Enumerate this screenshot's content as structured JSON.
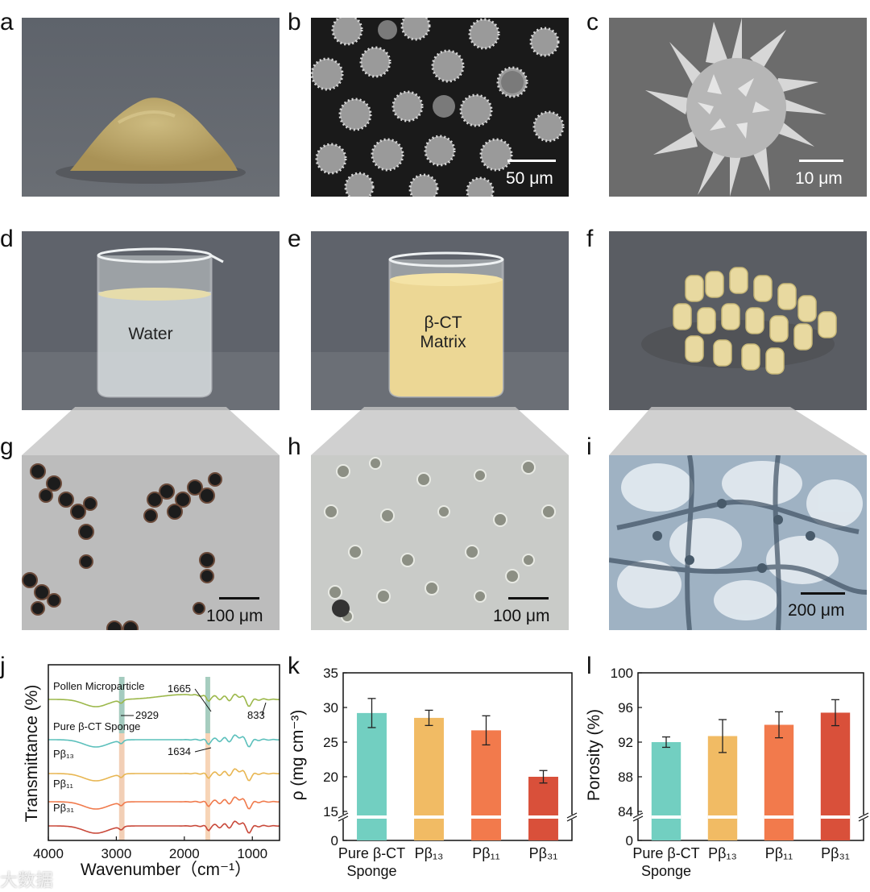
{
  "panels": {
    "a": "a",
    "b": "b",
    "c": "c",
    "d": "d",
    "e": "e",
    "f": "f",
    "g": "g",
    "h": "h",
    "i": "i",
    "j": "j",
    "k": "k",
    "l": "l"
  },
  "scalebars": {
    "b": "50 μm",
    "c": "10 μm",
    "g": "100 μm",
    "h": "100 μm",
    "i": "200 μm"
  },
  "photo_labels": {
    "d": "Water",
    "e_line1": "β-CT",
    "e_line2": "Matrix"
  },
  "colors": {
    "teal": "#72cfc1",
    "orange_light": "#f1bb64",
    "orange": "#f27a4c",
    "red": "#d9503a",
    "green_curve": "#9cb84b",
    "photo_gray": "#5d6169"
  },
  "watermark": "大数据",
  "chart_data": [
    {
      "type": "line",
      "panel": "j",
      "xlabel": "Wavenumber（cm⁻¹）",
      "ylabel": "Transmittance (%)",
      "xlim": [
        4000,
        600
      ],
      "xticks": [
        "4000",
        "3000",
        "2000",
        "1000"
      ],
      "series": [
        {
          "name": "Pollen Microparticle",
          "color": "#9cb84b"
        },
        {
          "name": "Pure β-CT Sponge",
          "color": "#5cc0bc"
        },
        {
          "name": "Pβ₁₃",
          "color": "#e8b652"
        },
        {
          "name": "Pβ₁₁",
          "color": "#f07a4c"
        },
        {
          "name": "Pβ₃₁",
          "color": "#c9493a"
        }
      ],
      "annotations": [
        "2929",
        "1665",
        "833",
        "1634"
      ]
    },
    {
      "type": "bar",
      "panel": "k",
      "categories": [
        "Pure β-CT Sponge",
        "Pβ₁₃",
        "Pβ₁₁",
        "Pβ₃₁"
      ],
      "category_lines": [
        [
          "Pure β-CT",
          "Sponge"
        ],
        [
          "Pβ₁₃"
        ],
        [
          "Pβ₁₁"
        ],
        [
          "Pβ₃₁"
        ]
      ],
      "values": [
        29.2,
        28.5,
        26.7,
        20.0
      ],
      "errors": [
        2.1,
        1.1,
        2.1,
        0.9
      ],
      "ylabel": "ρ (mg cm⁻³)",
      "yticks": [
        "0",
        "15",
        "20",
        "25",
        "30",
        "35"
      ],
      "ylim_broken": [
        15,
        35
      ],
      "colors": [
        "#72cfc1",
        "#f1bb64",
        "#f27a4c",
        "#d9503a"
      ]
    },
    {
      "type": "bar",
      "panel": "l",
      "categories": [
        "Pure β-CT Sponge",
        "Pβ₁₃",
        "Pβ₁₁",
        "Pβ₃₁"
      ],
      "category_lines": [
        [
          "Pure β-CT",
          "Sponge"
        ],
        [
          "Pβ₁₃"
        ],
        [
          "Pβ₁₁"
        ],
        [
          "Pβ₃₁"
        ]
      ],
      "values": [
        92.0,
        92.7,
        94.0,
        95.4
      ],
      "errors": [
        0.6,
        1.9,
        1.5,
        1.5
      ],
      "ylabel": "Porosity (%)",
      "yticks": [
        "0",
        "84",
        "88",
        "92",
        "96",
        "100"
      ],
      "ylim_broken": [
        84,
        100
      ],
      "colors": [
        "#72cfc1",
        "#f1bb64",
        "#f27a4c",
        "#d9503a"
      ]
    }
  ]
}
